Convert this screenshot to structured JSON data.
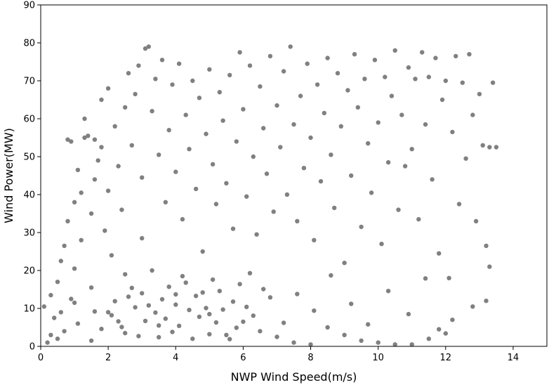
{
  "chart_data": {
    "type": "scatter",
    "title": "",
    "xlabel": "NWP Wind Speed(m/s)",
    "ylabel": "Wind Power(MW)",
    "xlim": [
      0,
      15
    ],
    "ylim": [
      0,
      90
    ],
    "xticks": [
      0,
      2,
      4,
      6,
      8,
      10,
      12,
      14
    ],
    "yticks": [
      0,
      10,
      20,
      30,
      40,
      50,
      60,
      70,
      80,
      90
    ],
    "grid": false,
    "legend": "none",
    "marker_color": "#808080",
    "series": [
      {
        "points": [
          [
            0.1,
            10.5
          ],
          [
            0.2,
            1.0
          ],
          [
            0.3,
            3.0
          ],
          [
            0.3,
            13.5
          ],
          [
            0.4,
            7.5
          ],
          [
            0.5,
            17.0
          ],
          [
            0.5,
            2.0
          ],
          [
            0.6,
            22.5
          ],
          [
            0.6,
            9.0
          ],
          [
            0.7,
            26.5
          ],
          [
            0.7,
            4.0
          ],
          [
            0.8,
            33.0
          ],
          [
            0.8,
            54.5
          ],
          [
            0.9,
            54.0
          ],
          [
            0.9,
            12.5
          ],
          [
            1.0,
            38.0
          ],
          [
            1.0,
            20.5
          ],
          [
            1.1,
            46.5
          ],
          [
            1.1,
            6.0
          ],
          [
            1.2,
            40.5
          ],
          [
            1.2,
            28.0
          ],
          [
            1.3,
            60.0
          ],
          [
            1.3,
            55.0
          ],
          [
            1.4,
            55.5
          ],
          [
            1.5,
            35.0
          ],
          [
            1.5,
            15.5
          ],
          [
            1.6,
            54.5
          ],
          [
            1.6,
            44.0
          ],
          [
            1.7,
            49.0
          ],
          [
            1.8,
            65.0
          ],
          [
            1.8,
            52.5
          ],
          [
            1.9,
            30.5
          ],
          [
            2.0,
            68.0
          ],
          [
            2.0,
            41.0
          ],
          [
            2.1,
            24.0
          ],
          [
            2.2,
            58.0
          ],
          [
            2.3,
            47.5
          ],
          [
            2.4,
            36.0
          ],
          [
            2.5,
            63.0
          ],
          [
            2.5,
            19.0
          ],
          [
            2.6,
            72.0
          ],
          [
            2.7,
            53.0
          ],
          [
            2.8,
            66.5
          ],
          [
            2.9,
            74.0
          ],
          [
            3.0,
            44.5
          ],
          [
            3.0,
            28.5
          ],
          [
            3.1,
            78.5
          ],
          [
            3.2,
            79.0
          ],
          [
            3.3,
            62.0
          ],
          [
            3.4,
            70.5
          ],
          [
            3.5,
            50.5
          ],
          [
            3.6,
            75.5
          ],
          [
            3.7,
            38.0
          ],
          [
            3.8,
            57.0
          ],
          [
            3.9,
            69.0
          ],
          [
            4.0,
            46.0
          ],
          [
            4.1,
            74.5
          ],
          [
            4.2,
            33.5
          ],
          [
            4.3,
            61.0
          ],
          [
            4.4,
            52.0
          ],
          [
            4.5,
            70.0
          ],
          [
            4.6,
            41.5
          ],
          [
            4.7,
            65.5
          ],
          [
            4.8,
            25.0
          ],
          [
            4.9,
            56.0
          ],
          [
            5.0,
            73.0
          ],
          [
            5.1,
            48.0
          ],
          [
            5.2,
            37.5
          ],
          [
            5.3,
            67.0
          ],
          [
            5.4,
            59.5
          ],
          [
            5.5,
            43.0
          ],
          [
            5.6,
            71.5
          ],
          [
            5.7,
            31.0
          ],
          [
            5.8,
            54.0
          ],
          [
            5.9,
            77.5
          ],
          [
            6.0,
            62.5
          ],
          [
            6.1,
            39.5
          ],
          [
            6.2,
            74.0
          ],
          [
            6.3,
            50.0
          ],
          [
            6.4,
            29.5
          ],
          [
            6.5,
            68.5
          ],
          [
            6.6,
            57.5
          ],
          [
            6.7,
            45.5
          ],
          [
            6.8,
            76.5
          ],
          [
            6.9,
            35.5
          ],
          [
            7.0,
            63.5
          ],
          [
            7.1,
            52.5
          ],
          [
            7.2,
            72.5
          ],
          [
            7.3,
            40.0
          ],
          [
            7.4,
            79.0
          ],
          [
            7.5,
            58.5
          ],
          [
            7.6,
            33.0
          ],
          [
            7.7,
            66.0
          ],
          [
            7.8,
            47.0
          ],
          [
            7.9,
            74.5
          ],
          [
            8.0,
            55.0
          ],
          [
            8.1,
            28.0
          ],
          [
            8.2,
            69.0
          ],
          [
            8.3,
            43.5
          ],
          [
            8.4,
            61.5
          ],
          [
            8.5,
            76.0
          ],
          [
            8.6,
            50.5
          ],
          [
            8.7,
            36.5
          ],
          [
            8.8,
            72.0
          ],
          [
            8.9,
            58.0
          ],
          [
            9.0,
            22.0
          ],
          [
            9.1,
            67.5
          ],
          [
            9.2,
            45.0
          ],
          [
            9.3,
            77.0
          ],
          [
            9.4,
            63.0
          ],
          [
            9.5,
            31.5
          ],
          [
            9.6,
            70.5
          ],
          [
            9.7,
            53.5
          ],
          [
            9.8,
            40.5
          ],
          [
            9.9,
            75.5
          ],
          [
            10.0,
            59.0
          ],
          [
            10.1,
            27.0
          ],
          [
            10.2,
            71.0
          ],
          [
            10.3,
            48.5
          ],
          [
            10.4,
            66.0
          ],
          [
            10.5,
            78.0
          ],
          [
            10.6,
            36.0
          ],
          [
            10.7,
            61.0
          ],
          [
            10.8,
            47.5
          ],
          [
            10.9,
            73.5
          ],
          [
            11.0,
            52.0
          ],
          [
            11.1,
            70.5
          ],
          [
            11.2,
            33.5
          ],
          [
            11.3,
            77.5
          ],
          [
            11.4,
            58.5
          ],
          [
            11.5,
            71.0
          ],
          [
            11.6,
            44.0
          ],
          [
            11.7,
            76.0
          ],
          [
            11.8,
            24.5
          ],
          [
            11.9,
            65.0
          ],
          [
            12.0,
            70.0
          ],
          [
            12.1,
            18.0
          ],
          [
            12.2,
            56.5
          ],
          [
            12.3,
            76.5
          ],
          [
            12.4,
            37.5
          ],
          [
            12.5,
            69.5
          ],
          [
            12.6,
            49.5
          ],
          [
            12.7,
            77.0
          ],
          [
            12.8,
            61.0
          ],
          [
            12.9,
            33.0
          ],
          [
            13.0,
            66.5
          ],
          [
            13.1,
            53.0
          ],
          [
            13.2,
            26.5
          ],
          [
            13.3,
            52.5
          ],
          [
            13.4,
            69.5
          ],
          [
            13.5,
            52.5
          ],
          [
            13.3,
            21.0
          ],
          [
            13.2,
            12.0
          ],
          [
            12.8,
            10.5
          ],
          [
            12.2,
            7.0
          ],
          [
            11.8,
            4.5
          ],
          [
            11.5,
            2.0
          ],
          [
            11.0,
            0.5
          ],
          [
            10.5,
            0.5
          ],
          [
            10.0,
            1.0
          ],
          [
            9.5,
            1.5
          ],
          [
            9.0,
            3.0
          ],
          [
            8.5,
            5.0
          ],
          [
            8.0,
            0.5
          ],
          [
            7.5,
            1.0
          ],
          [
            7.0,
            2.5
          ],
          [
            6.5,
            4.0
          ],
          [
            6.0,
            6.5
          ],
          [
            5.5,
            3.0
          ],
          [
            5.0,
            8.5
          ],
          [
            4.5,
            2.0
          ],
          [
            4.0,
            11.0
          ],
          [
            3.5,
            5.5
          ],
          [
            3.0,
            14.0
          ],
          [
            2.5,
            3.5
          ],
          [
            2.0,
            9.0
          ],
          [
            1.5,
            1.5
          ],
          [
            1.0,
            11.5
          ],
          [
            3.3,
            20.0
          ],
          [
            4.2,
            18.5
          ],
          [
            2.1,
            8.2
          ],
          [
            2.4,
            5.1
          ],
          [
            2.8,
            10.3
          ],
          [
            3.1,
            6.7
          ],
          [
            3.6,
            12.4
          ],
          [
            3.9,
            3.8
          ],
          [
            4.4,
            9.6
          ],
          [
            4.8,
            14.2
          ],
          [
            5.2,
            6.3
          ],
          [
            5.7,
            11.8
          ],
          [
            2.6,
            13.1
          ],
          [
            3.4,
            8.9
          ],
          [
            3.8,
            15.7
          ],
          [
            4.1,
            5.4
          ],
          [
            4.6,
            13.3
          ],
          [
            5.0,
            3.2
          ],
          [
            5.4,
            9.7
          ],
          [
            5.9,
            16.4
          ],
          [
            6.3,
            8.1
          ],
          [
            6.8,
            12.9
          ],
          [
            1.8,
            4.6
          ],
          [
            2.2,
            11.9
          ],
          [
            2.9,
            2.7
          ],
          [
            3.2,
            10.8
          ],
          [
            3.7,
            7.3
          ],
          [
            4.3,
            16.8
          ],
          [
            4.9,
            10.1
          ],
          [
            5.3,
            14.6
          ],
          [
            5.8,
            4.9
          ],
          [
            6.2,
            19.3
          ],
          [
            1.6,
            9.2
          ],
          [
            2.3,
            6.6
          ],
          [
            2.7,
            15.4
          ],
          [
            3.5,
            2.4
          ],
          [
            4.0,
            13.7
          ],
          [
            4.7,
            7.8
          ],
          [
            5.1,
            17.6
          ],
          [
            5.6,
            1.9
          ],
          [
            6.1,
            10.4
          ],
          [
            6.6,
            15.1
          ],
          [
            7.2,
            6.2
          ],
          [
            7.6,
            13.8
          ],
          [
            8.1,
            9.4
          ],
          [
            8.6,
            18.7
          ],
          [
            9.2,
            11.2
          ],
          [
            9.7,
            5.8
          ],
          [
            10.3,
            14.6
          ],
          [
            10.9,
            8.5
          ],
          [
            11.4,
            17.9
          ],
          [
            12.0,
            3.4
          ]
        ]
      }
    ]
  }
}
